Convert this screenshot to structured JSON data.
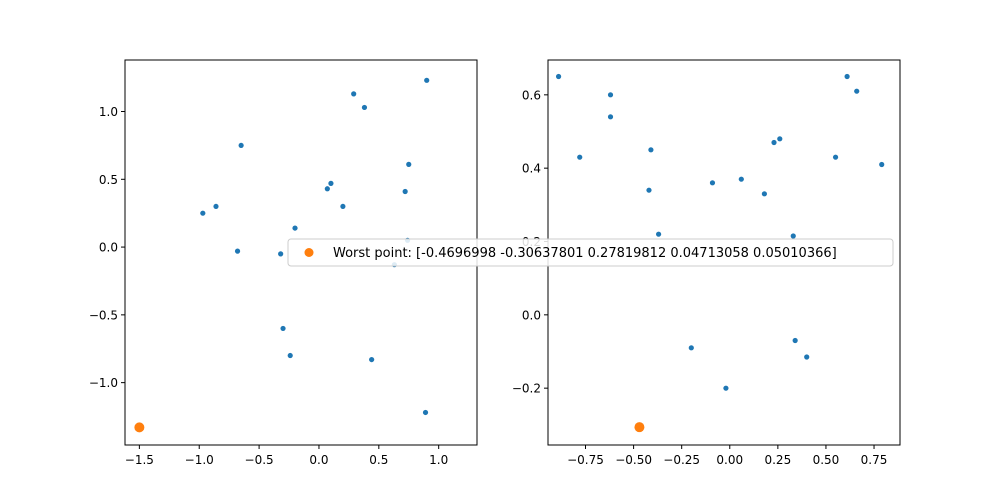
{
  "colors": {
    "series": "#1f77b4",
    "worst": "#ff7f0e",
    "axes": "#000000",
    "legend_border": "#cccccc"
  },
  "legend": {
    "label": "Worst point: [-0.4696998  -0.30637801  0.27819812  0.04713058  0.05010366]",
    "placement": "center"
  },
  "chart_data": [
    {
      "type": "scatter",
      "xlim": [
        -1.62,
        1.32
      ],
      "ylim": [
        -1.46,
        1.38
      ],
      "grid": false,
      "xticks": [
        "−1.5",
        "−1.0",
        "−0.5",
        "0.0",
        "0.5",
        "1.0"
      ],
      "xtick_values": [
        -1.5,
        -1.0,
        -0.5,
        0.0,
        0.5,
        1.0
      ],
      "yticks": [
        "−1.0",
        "−0.5",
        "0.0",
        "0.5",
        "1.0"
      ],
      "ytick_values": [
        -1.0,
        -0.5,
        0.0,
        0.5,
        1.0
      ],
      "series": [
        {
          "points": [
            [
              0.9,
              1.23
            ],
            [
              0.29,
              1.13
            ],
            [
              0.38,
              1.03
            ],
            [
              -0.65,
              0.75
            ],
            [
              0.75,
              0.61
            ],
            [
              0.1,
              0.47
            ],
            [
              0.07,
              0.43
            ],
            [
              0.72,
              0.41
            ],
            [
              -0.86,
              0.3
            ],
            [
              -0.97,
              0.25
            ],
            [
              0.2,
              0.3
            ],
            [
              -0.2,
              0.14
            ],
            [
              -0.68,
              -0.03
            ],
            [
              -0.32,
              -0.05
            ],
            [
              0.74,
              0.05
            ],
            [
              0.63,
              -0.13
            ],
            [
              -0.3,
              -0.6
            ],
            [
              -0.24,
              -0.8
            ],
            [
              0.44,
              -0.83
            ],
            [
              0.89,
              -1.22
            ]
          ]
        },
        {
          "points": [
            [
              -1.5,
              -1.33
            ]
          ]
        }
      ]
    },
    {
      "type": "scatter",
      "xlim": [
        -0.945,
        0.885
      ],
      "ylim": [
        -0.355,
        0.695
      ],
      "grid": false,
      "xticks": [
        "−0.75",
        "−0.50",
        "−0.25",
        "0.00",
        "0.25",
        "0.50",
        "0.75"
      ],
      "xtick_values": [
        -0.75,
        -0.5,
        -0.25,
        0.0,
        0.25,
        0.5,
        0.75
      ],
      "yticks": [
        "−0.2",
        "0.0",
        "0.2",
        "0.4",
        "0.6"
      ],
      "ytick_values": [
        -0.2,
        0.0,
        0.2,
        0.4,
        0.6
      ],
      "series": [
        {
          "points": [
            [
              -0.89,
              0.65
            ],
            [
              0.61,
              0.65
            ],
            [
              0.66,
              0.61
            ],
            [
              -0.62,
              0.6
            ],
            [
              -0.62,
              0.54
            ],
            [
              -0.41,
              0.45
            ],
            [
              -0.78,
              0.43
            ],
            [
              0.23,
              0.47
            ],
            [
              0.26,
              0.48
            ],
            [
              0.55,
              0.43
            ],
            [
              0.79,
              0.41
            ],
            [
              0.06,
              0.37
            ],
            [
              -0.09,
              0.36
            ],
            [
              -0.42,
              0.34
            ],
            [
              0.18,
              0.33
            ],
            [
              -0.37,
              0.22
            ],
            [
              0.33,
              0.215
            ],
            [
              -0.2,
              -0.09
            ],
            [
              0.34,
              -0.07
            ],
            [
              0.4,
              -0.115
            ],
            [
              -0.02,
              -0.2
            ]
          ]
        },
        {
          "points": [
            [
              -0.4696998,
              -0.30637801
            ]
          ]
        }
      ]
    }
  ]
}
